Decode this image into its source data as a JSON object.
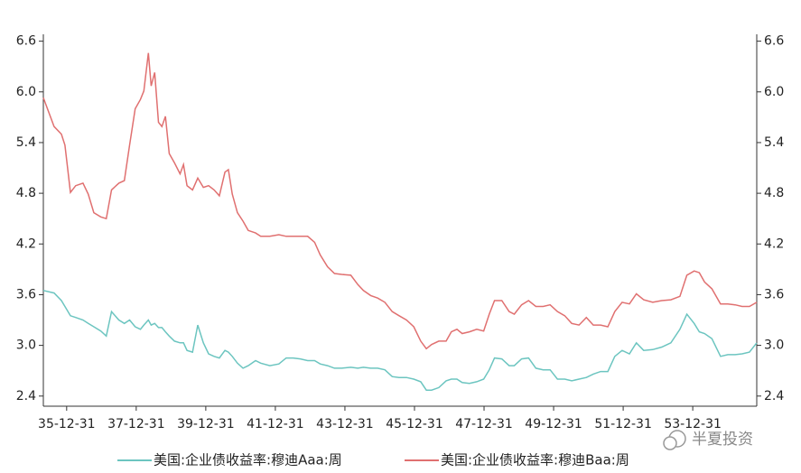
{
  "chart_data": {
    "type": "line",
    "x": [
      1935.33,
      1935.64,
      1935.85,
      1935.95,
      1936.11,
      1936.26,
      1936.47,
      1936.62,
      1936.78,
      1936.98,
      1937.14,
      1937.29,
      1937.5,
      1937.66,
      1937.81,
      1937.97,
      1938.12,
      1938.22,
      1938.35,
      1938.43,
      1938.53,
      1938.64,
      1938.74,
      1938.84,
      1938.95,
      1939.1,
      1939.26,
      1939.36,
      1939.46,
      1939.62,
      1939.77,
      1939.93,
      1940.08,
      1940.24,
      1940.39,
      1940.55,
      1940.65,
      1940.76,
      1940.91,
      1941.07,
      1941.22,
      1941.43,
      1941.58,
      1941.84,
      1942.1,
      1942.31,
      1942.51,
      1942.72,
      1942.93,
      1943.13,
      1943.29,
      1943.5,
      1943.7,
      1943.91,
      1944.17,
      1944.37,
      1944.53,
      1944.74,
      1944.94,
      1945.15,
      1945.36,
      1945.56,
      1945.77,
      1945.98,
      1946.18,
      1946.34,
      1946.49,
      1946.7,
      1946.91,
      1947.06,
      1947.22,
      1947.37,
      1947.58,
      1947.79,
      1947.99,
      1948.15,
      1948.3,
      1948.51,
      1948.72,
      1948.87,
      1949.08,
      1949.28,
      1949.49,
      1949.7,
      1949.9,
      1950.11,
      1950.32,
      1950.52,
      1950.73,
      1950.94,
      1951.14,
      1951.35,
      1951.56,
      1951.76,
      1951.97,
      1952.18,
      1952.38,
      1952.59,
      1952.85,
      1953.11,
      1953.37,
      1953.63,
      1953.83,
      1954.04,
      1954.19,
      1954.34,
      1954.55,
      1954.8,
      1955.01,
      1955.22,
      1955.42,
      1955.63,
      1955.84
    ],
    "series": [
      {
        "name": "美国:企业债收益率:穆迪Aaa:周",
        "color": "#6cc5c0",
        "values": [
          3.65,
          3.62,
          3.53,
          3.46,
          3.35,
          3.33,
          3.3,
          3.26,
          3.22,
          3.17,
          3.11,
          3.4,
          3.3,
          3.26,
          3.3,
          3.22,
          3.19,
          3.24,
          3.3,
          3.24,
          3.26,
          3.21,
          3.21,
          3.16,
          3.11,
          3.05,
          3.03,
          3.03,
          2.94,
          2.92,
          3.24,
          3.03,
          2.9,
          2.87,
          2.85,
          2.94,
          2.92,
          2.87,
          2.79,
          2.73,
          2.76,
          2.82,
          2.79,
          2.76,
          2.78,
          2.85,
          2.85,
          2.84,
          2.82,
          2.82,
          2.78,
          2.76,
          2.73,
          2.73,
          2.74,
          2.73,
          2.74,
          2.73,
          2.73,
          2.71,
          2.63,
          2.62,
          2.62,
          2.6,
          2.57,
          2.47,
          2.47,
          2.5,
          2.58,
          2.6,
          2.6,
          2.56,
          2.55,
          2.57,
          2.6,
          2.71,
          2.85,
          2.84,
          2.76,
          2.76,
          2.84,
          2.85,
          2.73,
          2.71,
          2.71,
          2.6,
          2.6,
          2.58,
          2.6,
          2.62,
          2.66,
          2.69,
          2.69,
          2.87,
          2.94,
          2.9,
          3.03,
          2.94,
          2.95,
          2.98,
          3.03,
          3.19,
          3.37,
          3.26,
          3.16,
          3.14,
          3.08,
          2.87,
          2.89,
          2.89,
          2.9,
          2.92,
          3.03
        ]
      },
      {
        "name": "美国:企业债收益率:穆迪Baa:周",
        "color": "#e07070",
        "values": [
          5.93,
          5.59,
          5.5,
          5.37,
          4.81,
          4.89,
          4.92,
          4.79,
          4.57,
          4.52,
          4.5,
          4.84,
          4.92,
          4.95,
          5.37,
          5.8,
          5.91,
          6.01,
          6.46,
          6.07,
          6.23,
          5.64,
          5.59,
          5.71,
          5.27,
          5.16,
          5.03,
          5.14,
          4.89,
          4.84,
          4.98,
          4.87,
          4.89,
          4.84,
          4.77,
          5.05,
          5.08,
          4.79,
          4.57,
          4.47,
          4.36,
          4.33,
          4.29,
          4.29,
          4.31,
          4.29,
          4.29,
          4.29,
          4.29,
          4.22,
          4.07,
          3.93,
          3.85,
          3.84,
          3.83,
          3.72,
          3.65,
          3.59,
          3.56,
          3.51,
          3.4,
          3.35,
          3.3,
          3.22,
          3.05,
          2.96,
          3.01,
          3.05,
          3.05,
          3.16,
          3.19,
          3.14,
          3.16,
          3.19,
          3.17,
          3.37,
          3.53,
          3.53,
          3.4,
          3.37,
          3.48,
          3.53,
          3.46,
          3.46,
          3.48,
          3.4,
          3.35,
          3.26,
          3.24,
          3.33,
          3.24,
          3.24,
          3.22,
          3.4,
          3.51,
          3.49,
          3.61,
          3.54,
          3.51,
          3.53,
          3.54,
          3.58,
          3.83,
          3.88,
          3.86,
          3.75,
          3.67,
          3.49,
          3.49,
          3.48,
          3.46,
          3.46,
          3.51
        ]
      }
    ],
    "xlim": [
      1935.33,
      1955.84
    ],
    "xticks": [
      {
        "value": 1936,
        "label": "35-12-31"
      },
      {
        "value": 1938,
        "label": "37-12-31"
      },
      {
        "value": 1940,
        "label": "39-12-31"
      },
      {
        "value": 1942,
        "label": "41-12-31"
      },
      {
        "value": 1944,
        "label": "43-12-31"
      },
      {
        "value": 1946,
        "label": "45-12-31"
      },
      {
        "value": 1948,
        "label": "47-12-31"
      },
      {
        "value": 1950,
        "label": "49-12-31"
      },
      {
        "value": 1952,
        "label": "51-12-31"
      },
      {
        "value": 1954,
        "label": "53-12-31"
      }
    ],
    "ylim": [
      2.28,
      6.66
    ],
    "yticks": [
      2.4,
      {
        "value": 3,
        "label": "3.0"
      },
      3.6,
      4.2,
      4.8,
      5.4,
      {
        "value": 6,
        "label": "6.0"
      },
      6.6
    ],
    "y2lim": [
      2.28,
      6.66
    ],
    "y2ticks": [
      2.4,
      {
        "value": 3,
        "label": "3.0"
      },
      3.6,
      4.2,
      4.8,
      5.4,
      {
        "value": 6,
        "label": "6.0"
      },
      6.6
    ],
    "legend": "bottom",
    "watermark": "半夏投资"
  }
}
